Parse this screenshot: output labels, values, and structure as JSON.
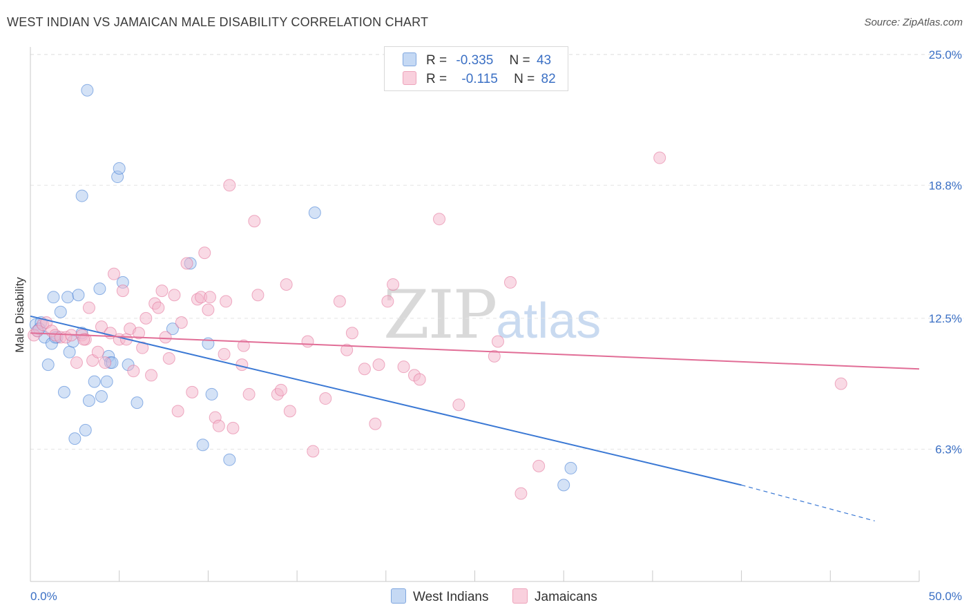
{
  "title": "WEST INDIAN VS JAMAICAN MALE DISABILITY CORRELATION CHART",
  "source": "Source: ZipAtlas.com",
  "watermark": {
    "zip": "ZIP",
    "atlas": "atlas"
  },
  "legend": {
    "r_label": "R =",
    "n_label": "N =",
    "rows": [
      {
        "r": "-0.335",
        "n": "43",
        "color": "#9dc0ee"
      },
      {
        "r": "-0.115",
        "n": "82",
        "color": "#f4b4c8"
      }
    ]
  },
  "bottom_legend": [
    "West Indians",
    "Jamaicans"
  ],
  "chart_data": {
    "type": "scatter",
    "xlabel": "",
    "ylabel": "Male Disability",
    "xlim": [
      0,
      50
    ],
    "ylim": [
      0,
      26.5
    ],
    "x_tick_labels": [
      "0.0%",
      "50.0%"
    ],
    "y_ticks": [
      6.3,
      12.5,
      18.8,
      25.0
    ],
    "y_tick_labels": [
      "6.3%",
      "12.5%",
      "18.8%",
      "25.0%"
    ],
    "grid": "horizontal dashed",
    "series": [
      {
        "name": "West Indians",
        "color": "#3a78d4",
        "fill": "#a9c6ee",
        "trend": {
          "x0": 0,
          "y0": 12.6,
          "x1": 40,
          "y1": 4.6,
          "dashed_to_x": 47.5,
          "dashed_to_y": 2.9
        },
        "points": [
          [
            0.3,
            12.2
          ],
          [
            0.4,
            11.9
          ],
          [
            0.6,
            12.3
          ],
          [
            0.8,
            11.6
          ],
          [
            1.0,
            10.3
          ],
          [
            1.2,
            11.3
          ],
          [
            1.3,
            13.5
          ],
          [
            1.5,
            11.6
          ],
          [
            1.7,
            12.8
          ],
          [
            1.9,
            9.0
          ],
          [
            2.1,
            13.5
          ],
          [
            2.2,
            10.9
          ],
          [
            2.4,
            11.4
          ],
          [
            2.5,
            6.8
          ],
          [
            2.7,
            13.6
          ],
          [
            2.9,
            11.8
          ],
          [
            3.1,
            7.2
          ],
          [
            3.2,
            23.3
          ],
          [
            3.3,
            8.6
          ],
          [
            3.6,
            9.5
          ],
          [
            3.9,
            13.9
          ],
          [
            4.0,
            8.8
          ],
          [
            4.3,
            9.5
          ],
          [
            4.4,
            10.7
          ],
          [
            4.5,
            10.4
          ],
          [
            4.6,
            10.4
          ],
          [
            4.9,
            19.2
          ],
          [
            5.0,
            19.6
          ],
          [
            5.2,
            14.2
          ],
          [
            5.5,
            10.3
          ],
          [
            6.0,
            8.5
          ],
          [
            2.9,
            18.3
          ],
          [
            8.0,
            12.0
          ],
          [
            9.0,
            15.1
          ],
          [
            9.7,
            6.5
          ],
          [
            10.0,
            11.3
          ],
          [
            10.2,
            8.9
          ],
          [
            11.2,
            5.8
          ],
          [
            16.0,
            17.5
          ],
          [
            30.0,
            4.6
          ],
          [
            30.4,
            5.4
          ],
          [
            0.5,
            12.0
          ],
          [
            1.4,
            11.6
          ]
        ]
      },
      {
        "name": "Jamaicans",
        "color": "#e16d96",
        "fill": "#f4b6cb",
        "trend": {
          "x0": 0,
          "y0": 11.8,
          "x1": 50,
          "y1": 10.1
        },
        "points": [
          [
            0.2,
            11.7
          ],
          [
            0.4,
            11.9
          ],
          [
            0.7,
            12.2
          ],
          [
            0.9,
            12.3
          ],
          [
            1.2,
            11.9
          ],
          [
            1.4,
            11.7
          ],
          [
            1.7,
            11.6
          ],
          [
            2.0,
            11.6
          ],
          [
            2.3,
            11.7
          ],
          [
            2.6,
            10.4
          ],
          [
            2.9,
            11.7
          ],
          [
            3.1,
            11.5
          ],
          [
            3.3,
            13.0
          ],
          [
            3.5,
            10.5
          ],
          [
            3.8,
            10.9
          ],
          [
            4.0,
            12.1
          ],
          [
            4.2,
            10.4
          ],
          [
            4.5,
            11.8
          ],
          [
            4.7,
            14.6
          ],
          [
            5.0,
            11.5
          ],
          [
            5.2,
            13.8
          ],
          [
            5.4,
            11.5
          ],
          [
            5.6,
            12.0
          ],
          [
            5.8,
            10.0
          ],
          [
            6.1,
            11.8
          ],
          [
            6.3,
            11.1
          ],
          [
            6.5,
            12.5
          ],
          [
            6.8,
            9.8
          ],
          [
            7.0,
            13.2
          ],
          [
            7.2,
            13.0
          ],
          [
            7.4,
            13.8
          ],
          [
            7.6,
            11.6
          ],
          [
            7.8,
            10.6
          ],
          [
            8.1,
            13.6
          ],
          [
            8.3,
            8.1
          ],
          [
            8.5,
            12.3
          ],
          [
            8.8,
            15.1
          ],
          [
            9.1,
            9.0
          ],
          [
            9.4,
            13.4
          ],
          [
            9.6,
            13.5
          ],
          [
            9.8,
            15.6
          ],
          [
            10.1,
            13.5
          ],
          [
            10.4,
            7.8
          ],
          [
            10.6,
            7.4
          ],
          [
            10.9,
            10.8
          ],
          [
            11.0,
            13.3
          ],
          [
            11.2,
            18.8
          ],
          [
            11.4,
            7.3
          ],
          [
            11.9,
            10.3
          ],
          [
            12.3,
            8.9
          ],
          [
            12.6,
            17.1
          ],
          [
            12.8,
            13.6
          ],
          [
            13.9,
            8.9
          ],
          [
            14.1,
            9.1
          ],
          [
            14.4,
            14.1
          ],
          [
            14.6,
            8.1
          ],
          [
            15.6,
            11.4
          ],
          [
            15.9,
            6.2
          ],
          [
            16.6,
            8.7
          ],
          [
            17.4,
            13.3
          ],
          [
            17.8,
            11.0
          ],
          [
            18.1,
            11.8
          ],
          [
            18.8,
            10.1
          ],
          [
            19.4,
            7.5
          ],
          [
            19.6,
            10.3
          ],
          [
            20.1,
            13.3
          ],
          [
            20.4,
            14.1
          ],
          [
            21.6,
            9.8
          ],
          [
            21.9,
            9.6
          ],
          [
            21.0,
            10.2
          ],
          [
            23.0,
            17.2
          ],
          [
            24.1,
            8.4
          ],
          [
            26.1,
            10.7
          ],
          [
            26.3,
            11.4
          ],
          [
            27.0,
            14.2
          ],
          [
            27.6,
            4.2
          ],
          [
            28.6,
            5.5
          ],
          [
            35.4,
            20.1
          ],
          [
            45.6,
            9.4
          ],
          [
            10.0,
            12.9
          ],
          [
            12.0,
            11.2
          ],
          [
            3.0,
            11.5
          ]
        ]
      }
    ]
  }
}
